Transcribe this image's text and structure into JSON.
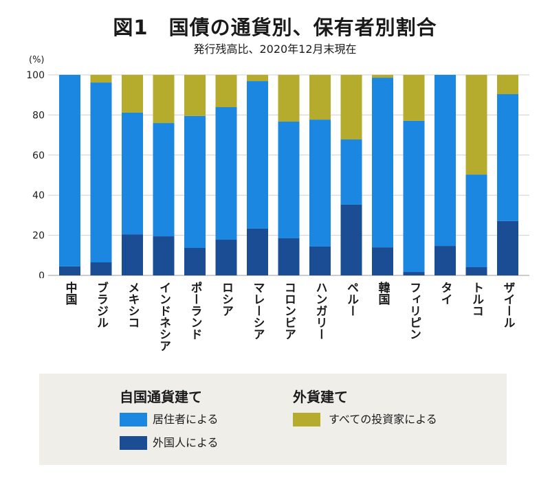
{
  "chart_data": {
    "type": "bar",
    "stacked": true,
    "title": "図1　国債の通貨別、保有者別割合",
    "subtitle": "発行残高比、2020年12月末現在",
    "ylabel": "(%)",
    "xlabel": "",
    "ylim": [
      0,
      100
    ],
    "yticks": [
      0,
      20,
      40,
      60,
      80,
      100
    ],
    "grid": true,
    "legend_position": "bottom",
    "categories": [
      "中国",
      "ブラジル",
      "メキシコ",
      "インドネシア",
      "ポーランド",
      "ロシア",
      "マレーシア",
      "コロンビア",
      "ハンガリー",
      "ペルー",
      "韓国",
      "フィリピン",
      "タイ",
      "トルコ",
      "ザイール"
    ],
    "series": [
      {
        "name": "外国人による",
        "color": "#1a4d94",
        "values": [
          4.5,
          6.5,
          20.5,
          19.5,
          13.7,
          17.8,
          23.3,
          18.5,
          14.4,
          35.3,
          14.0,
          1.7,
          14.7,
          4.1,
          27.1
        ]
      },
      {
        "name": "居住者による",
        "color": "#1c87e0",
        "values": [
          95.5,
          89.7,
          60.7,
          56.5,
          65.8,
          66.1,
          73.6,
          58.2,
          63.3,
          32.5,
          84.6,
          75.4,
          85.3,
          46.2,
          63.3
        ]
      },
      {
        "name": "すべての投資家による",
        "color": "#b5ab2c",
        "values": [
          0,
          3.8,
          18.8,
          24.0,
          20.5,
          16.1,
          3.1,
          23.3,
          22.3,
          32.2,
          1.4,
          22.9,
          0,
          49.7,
          9.6
        ]
      }
    ],
    "legend": {
      "groups": [
        {
          "title": "自国通貨建て",
          "series": [
            1,
            0
          ]
        },
        {
          "title": "外貨建て",
          "series": [
            2
          ]
        }
      ]
    }
  }
}
